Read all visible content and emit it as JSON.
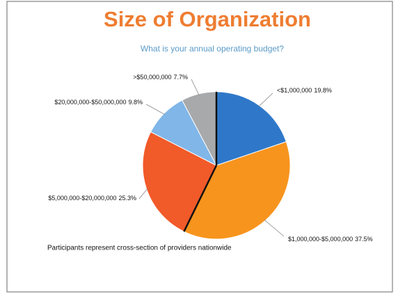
{
  "chart_data": {
    "type": "pie",
    "title": "Size of Organization",
    "subtitle": "What is your annual operating budget?",
    "annotation": "Participants represent cross-section of providers nationwide",
    "categories": [
      "<$1,000,000",
      "$1,000,000-$5,000,000",
      "$5,000,000-$20,000,000",
      "$20,000,000-$50,000,000",
      ">$50,000,000"
    ],
    "values": [
      19.8,
      37.5,
      25.3,
      9.8,
      7.7
    ],
    "value_labels": [
      "19.8%",
      "37.5%",
      "25.3%",
      "9.8%",
      "7.7%"
    ],
    "colors": [
      "#2f78c9",
      "#f7941d",
      "#f15a29",
      "#80b6e8",
      "#a7a9ab"
    ]
  }
}
